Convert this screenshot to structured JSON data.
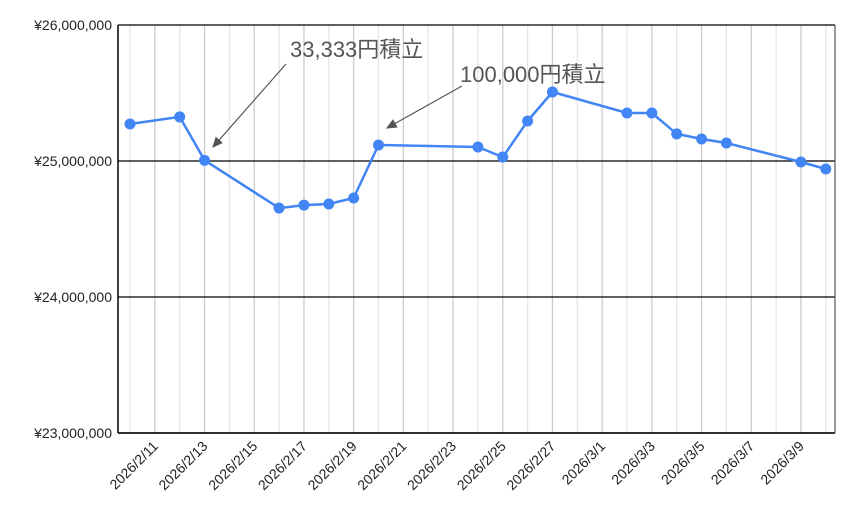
{
  "chart_data": {
    "type": "line",
    "title": "",
    "xlabel": "",
    "ylabel": "",
    "ylim": [
      23000000,
      26000000
    ],
    "yticks": [
      {
        "value": 26000000,
        "label": "¥26,000,000"
      },
      {
        "value": 25000000,
        "label": "¥25,000,000"
      },
      {
        "value": 24000000,
        "label": "¥24,000,000"
      },
      {
        "value": 23000000,
        "label": "¥23,000,000"
      }
    ],
    "xlim": [
      "2026/2/10",
      "2026/3/10"
    ],
    "xtick_labels": [
      "2026/2/11",
      "2026/2/13",
      "2026/2/15",
      "2026/2/17",
      "2026/2/19",
      "2026/2/21",
      "2026/2/23",
      "2026/2/25",
      "2026/2/27",
      "2026/3/1",
      "2026/3/3",
      "2026/3/5",
      "2026/3/7",
      "2026/3/9"
    ],
    "grid": true,
    "series_color": "#4285f4",
    "points": [
      {
        "x": "2026/2/10",
        "y": 25272000
      },
      {
        "x": "2026/2/12",
        "y": 25324000
      },
      {
        "x": "2026/2/13",
        "y": 25005000
      },
      {
        "x": "2026/2/16",
        "y": 24654000
      },
      {
        "x": "2026/2/17",
        "y": 24676000
      },
      {
        "x": "2026/2/18",
        "y": 24684000
      },
      {
        "x": "2026/2/19",
        "y": 24728000
      },
      {
        "x": "2026/2/20",
        "y": 25118000
      },
      {
        "x": "2026/2/24",
        "y": 25103000
      },
      {
        "x": "2026/2/25",
        "y": 25029000
      },
      {
        "x": "2026/2/26",
        "y": 25294000
      },
      {
        "x": "2026/2/27",
        "y": 25507000
      },
      {
        "x": "2026/3/2",
        "y": 25353000
      },
      {
        "x": "2026/3/3",
        "y": 25353000
      },
      {
        "x": "2026/3/4",
        "y": 25199000
      },
      {
        "x": "2026/3/5",
        "y": 25162000
      },
      {
        "x": "2026/3/6",
        "y": 25132000
      },
      {
        "x": "2026/3/9",
        "y": 24993000
      },
      {
        "x": "2026/3/10",
        "y": 24941000
      }
    ],
    "annotations": [
      {
        "text": "33,333円積立",
        "target": "2026/2/13"
      },
      {
        "text": "100,000円積立",
        "target": "2026/2/20"
      }
    ]
  }
}
